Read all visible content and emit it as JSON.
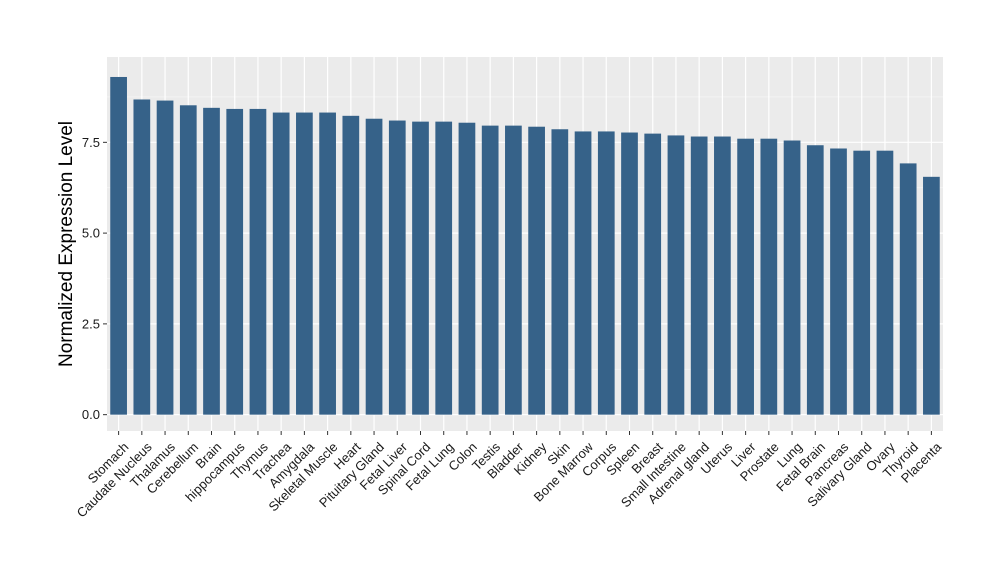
{
  "chart_data": {
    "type": "bar",
    "title": "",
    "xlabel": "",
    "ylabel": "Normalized Expression Level",
    "ylim": [
      -0.45,
      9.85
    ],
    "yticks": [
      0.0,
      2.5,
      5.0,
      7.5
    ],
    "ytick_labels": [
      "0.0",
      "2.5",
      "5.0",
      "7.5"
    ],
    "grid": true,
    "legend": "none",
    "categories": [
      "Stomach",
      "Caudate Nucleus",
      "Thalamus",
      "Cerebellum",
      "Brain",
      "hippocampus",
      "Thymus",
      "Trachea",
      "Amygdala",
      "Skeletal Muscle",
      "Heart",
      "Pituitary Gland",
      "Fetal Liver",
      "Spinal Cord",
      "Fetal Lung",
      "Colon",
      "Testis",
      "Bladder",
      "Kidney",
      "Skin",
      "Bone Marrow",
      "Corpus",
      "Spleen",
      "Breast",
      "Small Intestine",
      "Adrenal gland",
      "Uterus",
      "Liver",
      "Prostate",
      "Lung",
      "Fetal Brain",
      "Pancreas",
      "Salivary Gland",
      "Ovary",
      "Thyroid",
      "Placenta"
    ],
    "values": [
      9.3,
      8.68,
      8.65,
      8.52,
      8.45,
      8.42,
      8.42,
      8.32,
      8.32,
      8.32,
      8.23,
      8.15,
      8.1,
      8.07,
      8.07,
      8.04,
      7.96,
      7.96,
      7.93,
      7.86,
      7.8,
      7.8,
      7.77,
      7.74,
      7.69,
      7.66,
      7.66,
      7.6,
      7.6,
      7.55,
      7.42,
      7.33,
      7.27,
      7.27,
      6.92,
      6.55
    ]
  },
  "colors": {
    "bar": "#366289",
    "panel_background": "#ebebeb",
    "grid_major": "#ffffff",
    "grid_minor": "#f5f5f5",
    "text": "#1a1a1a"
  }
}
